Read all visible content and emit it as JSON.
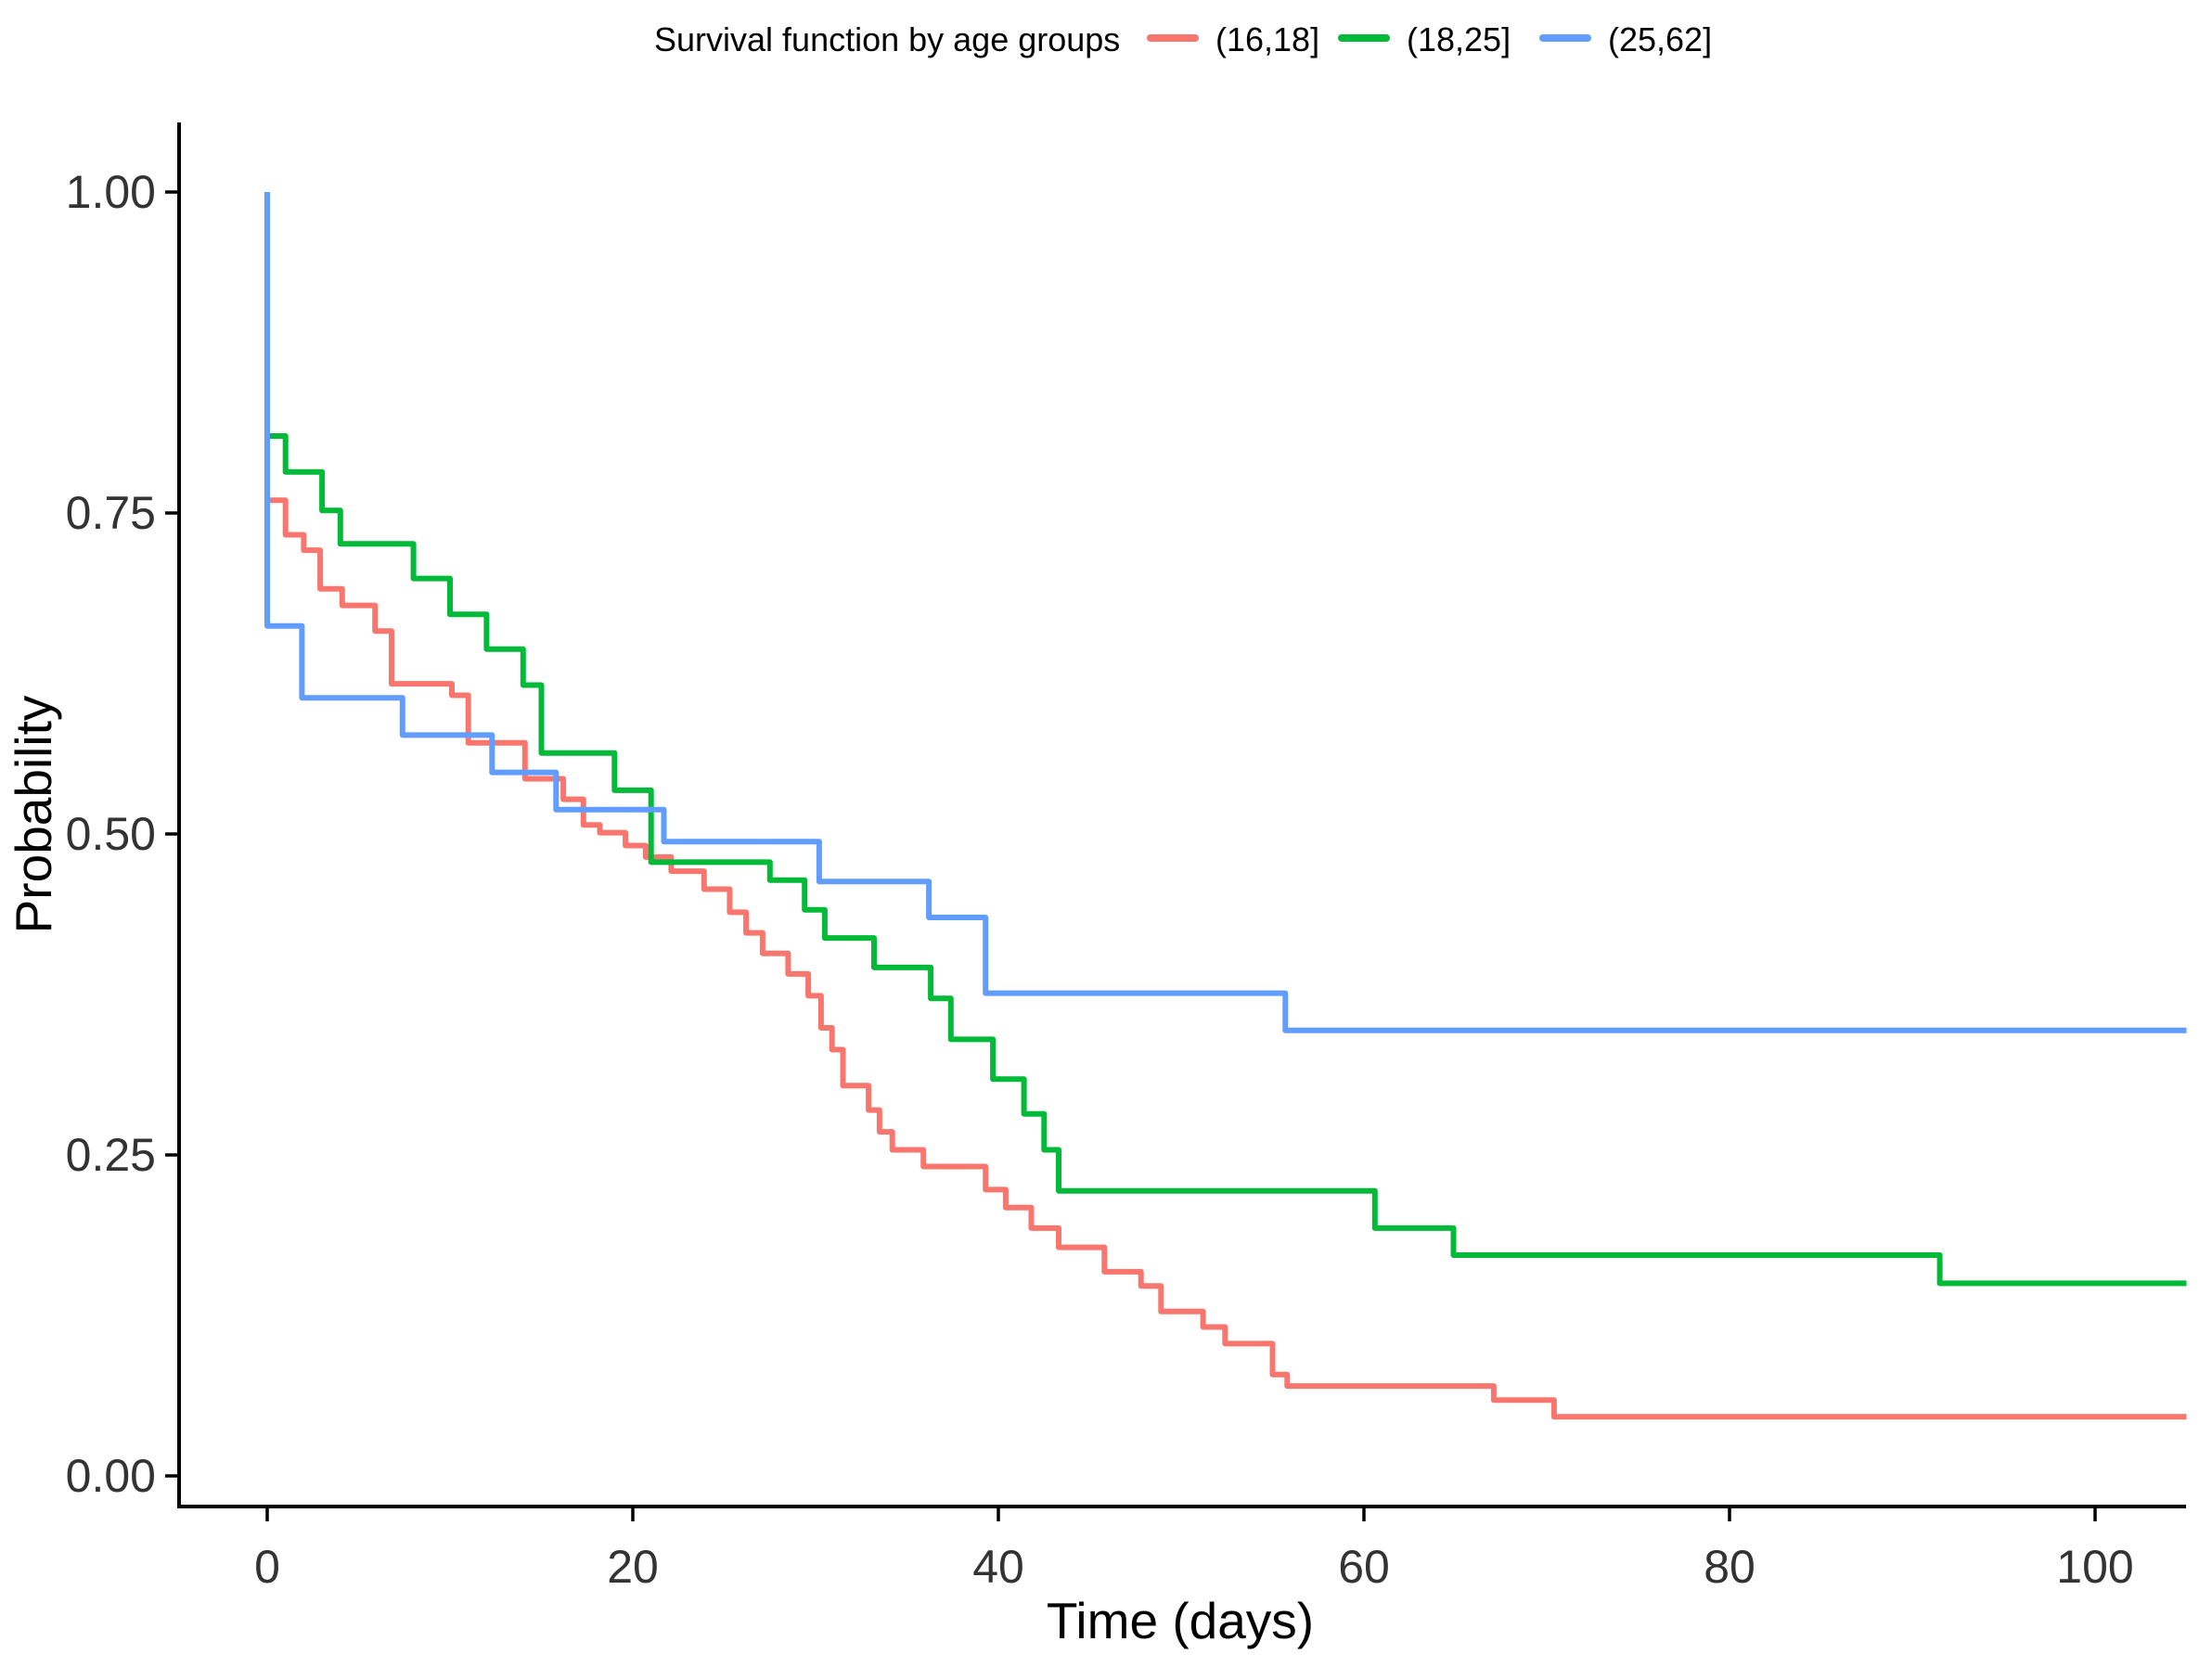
{
  "page": {
    "background": "#FFFFFF"
  },
  "legend": {
    "title": "Survival function by age groups",
    "position": "top",
    "items": [
      {
        "label": "(16,18]",
        "color": "#F8766D"
      },
      {
        "label": "(18,25]",
        "color": "#00BA38"
      },
      {
        "label": "(25,62]",
        "color": "#619CFF"
      }
    ]
  },
  "axes": {
    "x": {
      "title": "Time (days)",
      "tick_values": [
        0,
        20,
        40,
        60,
        80,
        100
      ],
      "tick_labels": [
        "0",
        "20",
        "40",
        "60",
        "80",
        "100"
      ]
    },
    "y": {
      "title": "Probability",
      "tick_values": [
        0,
        0.25,
        0.5,
        0.75,
        1
      ],
      "tick_labels": [
        "0.00",
        "0.25",
        "0.50",
        "0.75",
        "1.00"
      ]
    }
  },
  "chart_data": {
    "type": "line",
    "subtype": "kaplan-meier-step",
    "title": "Survival function by age groups",
    "xlabel": "Time (days)",
    "ylabel": "Probability",
    "xlim": [
      0,
      105
    ],
    "ylim": [
      0,
      1
    ],
    "x_ticks": [
      0,
      20,
      40,
      60,
      80,
      100
    ],
    "y_ticks": [
      0,
      0.25,
      0.5,
      0.75,
      1
    ],
    "grid": false,
    "legend_position": "top",
    "t_end": 105,
    "series": [
      {
        "name": "(16,18]",
        "color": "#F8766D",
        "points": [
          [
            0,
            0.76
          ],
          [
            1,
            0.733
          ],
          [
            2,
            0.721
          ],
          [
            2.9,
            0.691
          ],
          [
            4.1,
            0.678
          ],
          [
            5.9,
            0.658
          ],
          [
            6.8,
            0.617
          ],
          [
            10.1,
            0.608
          ],
          [
            11,
            0.571
          ],
          [
            14.1,
            0.543
          ],
          [
            16.2,
            0.527
          ],
          [
            17.3,
            0.507
          ],
          [
            18.2,
            0.501
          ],
          [
            19.6,
            0.491
          ],
          [
            20.7,
            0.482
          ],
          [
            22.1,
            0.471
          ],
          [
            23.9,
            0.457
          ],
          [
            25.3,
            0.439
          ],
          [
            26.2,
            0.423
          ],
          [
            27.1,
            0.407
          ],
          [
            28.5,
            0.391
          ],
          [
            29.6,
            0.374
          ],
          [
            30.3,
            0.349
          ],
          [
            30.9,
            0.332
          ],
          [
            31.5,
            0.304
          ],
          [
            32.9,
            0.285
          ],
          [
            33.5,
            0.268
          ],
          [
            34.2,
            0.254
          ],
          [
            35.9,
            0.241
          ],
          [
            39.3,
            0.223
          ],
          [
            40.4,
            0.209
          ],
          [
            41.8,
            0.193
          ],
          [
            43.3,
            0.178
          ],
          [
            45.8,
            0.159
          ],
          [
            47.8,
            0.148
          ],
          [
            48.9,
            0.128
          ],
          [
            51.2,
            0.116
          ],
          [
            52.4,
            0.103
          ],
          [
            55.0,
            0.079
          ],
          [
            55.8,
            0.07
          ],
          [
            67.1,
            0.059
          ],
          [
            70.4,
            0.046
          ]
        ]
      },
      {
        "name": "(18,25]",
        "color": "#00BA38",
        "points": [
          [
            0,
            0.81
          ],
          [
            1,
            0.782
          ],
          [
            3,
            0.752
          ],
          [
            4,
            0.726
          ],
          [
            8,
            0.699
          ],
          [
            10,
            0.671
          ],
          [
            12,
            0.644
          ],
          [
            14,
            0.616
          ],
          [
            15,
            0.563
          ],
          [
            19,
            0.534
          ],
          [
            21,
            0.478
          ],
          [
            27.5,
            0.464
          ],
          [
            29.4,
            0.441
          ],
          [
            30.5,
            0.419
          ],
          [
            33.2,
            0.396
          ],
          [
            36.3,
            0.372
          ],
          [
            37.4,
            0.34
          ],
          [
            39.7,
            0.309
          ],
          [
            41.4,
            0.282
          ],
          [
            42.5,
            0.254
          ],
          [
            43.3,
            0.222
          ],
          [
            60.6,
            0.193
          ],
          [
            64.9,
            0.172
          ],
          [
            91.5,
            0.15
          ]
        ]
      },
      {
        "name": "(25,62]",
        "color": "#619CFF",
        "points": [
          [
            0,
            1.0
          ],
          [
            0,
            0.662
          ],
          [
            1.9,
            0.606
          ],
          [
            7.4,
            0.577
          ],
          [
            12.3,
            0.548
          ],
          [
            15.8,
            0.519
          ],
          [
            21.7,
            0.494
          ],
          [
            30.2,
            0.463
          ],
          [
            36.2,
            0.435
          ],
          [
            39.3,
            0.376
          ],
          [
            55.7,
            0.347
          ]
        ]
      }
    ]
  }
}
